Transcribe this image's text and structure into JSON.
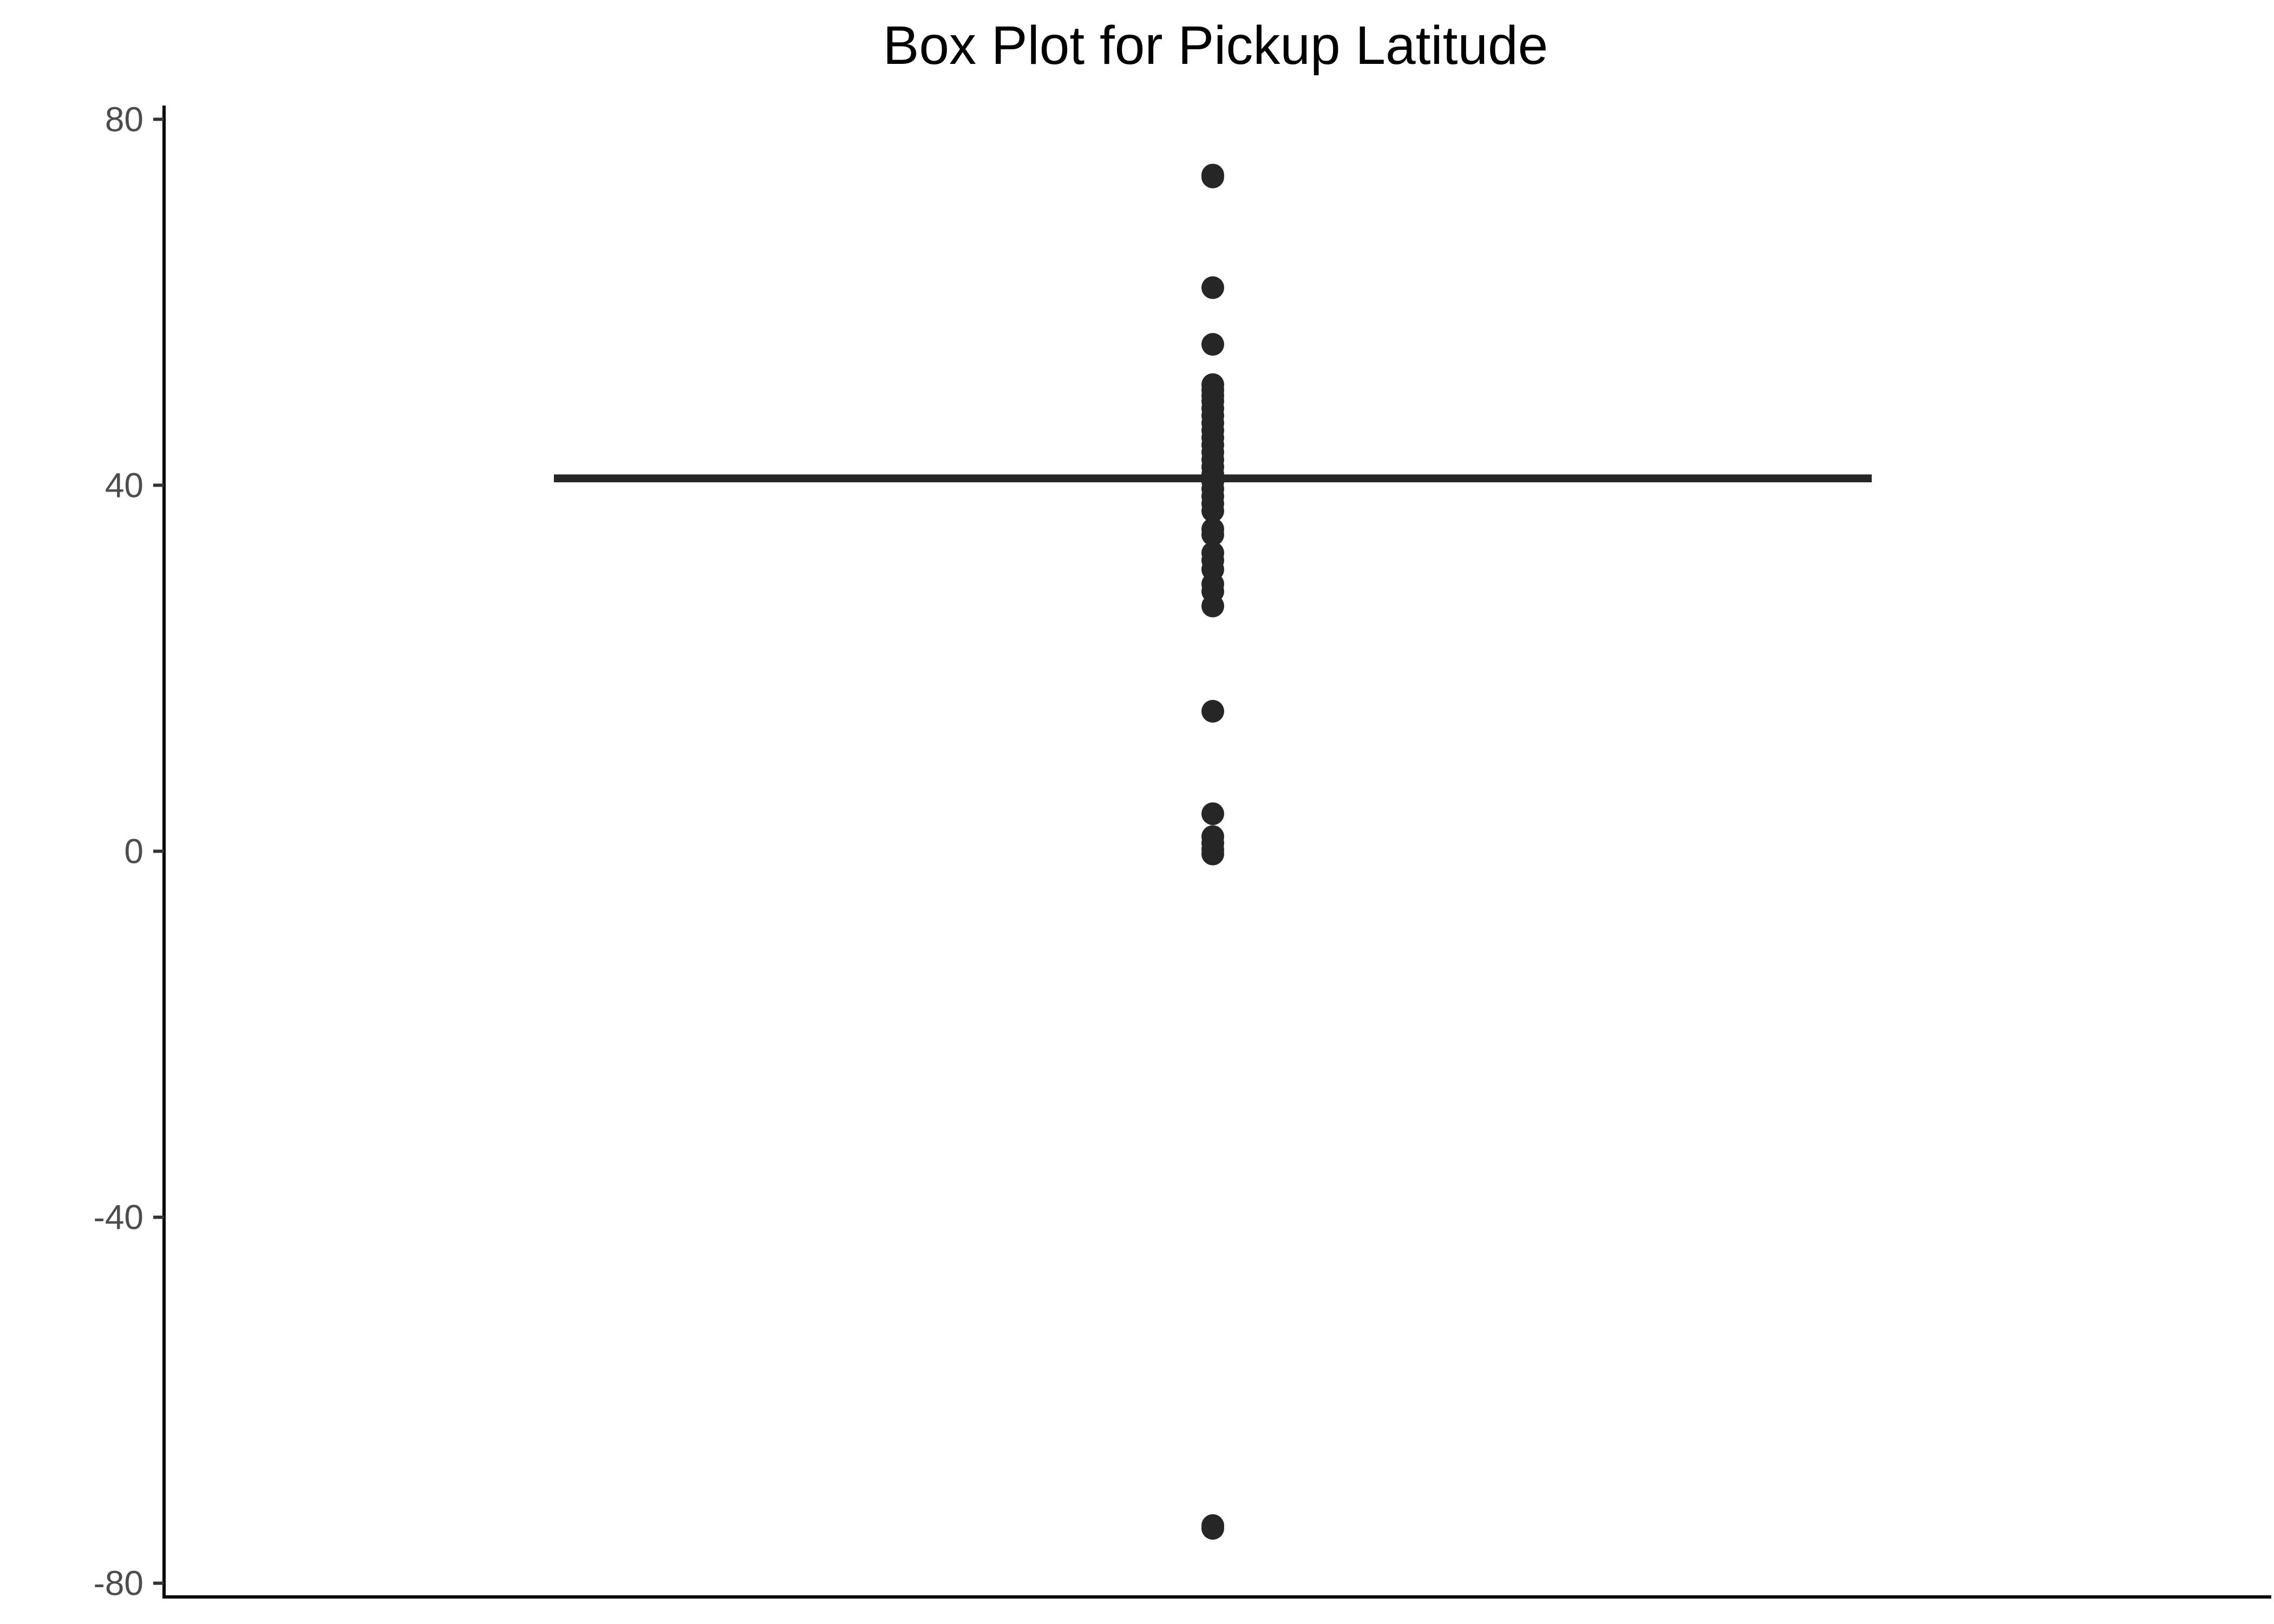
{
  "chart_data": {
    "type": "box",
    "title": "Box Plot for Pickup Latitude",
    "xlabel": "",
    "ylabel": "",
    "ylim": [
      -81.5,
      81.5
    ],
    "y_ticks": [
      80,
      40,
      0,
      -40,
      -80
    ],
    "y_tick_labels": [
      "80",
      "40",
      "0",
      "-40",
      "-80"
    ],
    "grid": false,
    "legend": "none",
    "colors": {
      "box": "#262626",
      "outliers": "#262626",
      "axis": "#000000",
      "tick_text": "#4d4d4d"
    },
    "box": {
      "q1": 40.74,
      "median": 40.75,
      "q3": 40.77
    },
    "outliers": [
      73.9,
      73.7,
      61.6,
      55.4,
      51.0,
      50.4,
      49.8,
      49.2,
      48.4,
      47.6,
      46.8,
      46.0,
      45.2,
      44.4,
      43.6,
      42.8,
      42.0,
      41.2,
      40.4,
      39.6,
      38.8,
      38.0,
      37.2,
      35.2,
      34.6,
      32.6,
      31.8,
      30.8,
      29.2,
      28.4,
      26.8,
      15.3,
      4.1,
      1.6,
      0.9,
      0.2,
      -0.3,
      -73.7,
      -74.0
    ]
  }
}
